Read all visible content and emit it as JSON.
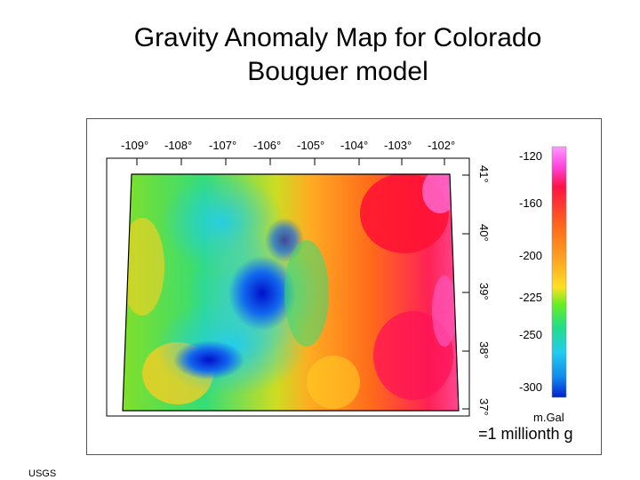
{
  "title": "Gravity Anomaly Map for Colorado",
  "subtitle": "Bouguer model",
  "longitude_labels": [
    "-109°",
    "-108°",
    "-107°",
    "-106°",
    "-105°",
    "-104°",
    "-103°",
    "-102°"
  ],
  "latitude_labels": [
    "41°",
    "40°",
    "39°",
    "38°",
    "37°"
  ],
  "colorbar": {
    "labels": [
      "-120",
      "-160",
      "-200",
      "-225",
      "-250",
      "-300"
    ],
    "colors": [
      "#ff88ff",
      "#ff2266",
      "#ff6a1a",
      "#ffaa22",
      "#ffe022",
      "#66ee22",
      "#22dddd",
      "#1188ee",
      "#0022cc"
    ],
    "units": "m.Gal"
  },
  "note": "=1 millionth g",
  "credit": "USGS"
}
